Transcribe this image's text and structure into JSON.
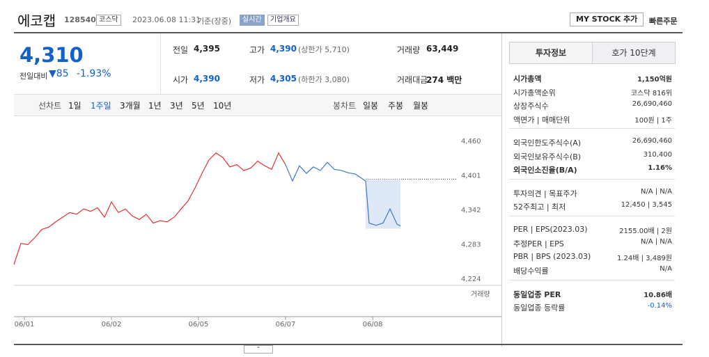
{
  "header": {
    "name": "에코캡",
    "code": "128540",
    "market": "코스닥",
    "date": "2023.06.08 11:31",
    "basis": "기준(장중)",
    "realtime": "실시간",
    "overview": "기업개요",
    "mystock": "MY STOCK 추가",
    "quick": "빠른주문"
  },
  "price": {
    "current": "4,310",
    "change_label": "전일대비",
    "change": "85",
    "rate": "-1.93%"
  },
  "quotes": [
    [
      "전일",
      "4,395",
      ""
    ],
    [
      "고가",
      "4,390",
      "(상한가 5,710)"
    ],
    [
      "거래량",
      "63,449",
      ""
    ],
    [
      "시가",
      "4,390",
      ""
    ],
    [
      "저가",
      "4,305",
      "(하한가 3,080)"
    ],
    [
      "거래대금",
      "274 백만",
      ""
    ]
  ],
  "tabs": {
    "line_chart": "선차트",
    "periods": [
      "1일",
      "1주일",
      "3개월",
      "1년",
      "3년",
      "5년",
      "10년"
    ],
    "candle": "봉차트",
    "candle_periods": [
      "일봉",
      "주봉",
      "월봉"
    ]
  },
  "chart_data": {
    "type": "line",
    "reference": 4395,
    "volume_label": "거래량",
    "xlim": [
      0,
      140
    ],
    "xticks": [
      {
        "value": 3,
        "label": "06/01"
      },
      {
        "value": 28,
        "label": "06/02"
      },
      {
        "value": 53,
        "label": "06/05"
      },
      {
        "value": 78,
        "label": "06/07"
      },
      {
        "value": 103,
        "label": "06/08"
      }
    ],
    "ylim": [
      4224,
      4460
    ],
    "yticks": [
      {
        "value": 4460,
        "label": "4,460"
      },
      {
        "value": 4401,
        "label": "4,401"
      },
      {
        "value": 4342,
        "label": "4,342"
      },
      {
        "value": 4283,
        "label": "4,283"
      },
      {
        "value": 4224,
        "label": "4,224"
      }
    ],
    "series": [
      {
        "color": "#e0312f",
        "x": [
          0,
          2,
          4,
          6,
          8,
          10,
          12,
          14,
          16,
          18,
          20,
          22,
          24,
          26,
          28,
          30,
          32,
          34,
          36,
          38,
          40,
          42,
          44,
          46,
          48,
          50,
          52,
          54,
          56,
          58,
          60,
          62,
          64,
          66,
          68,
          70,
          72,
          74,
          76,
          78
        ],
        "values": [
          4249,
          4285,
          4283,
          4295,
          4309,
          4313,
          4322,
          4330,
          4338,
          4335,
          4344,
          4340,
          4346,
          4330,
          4356,
          4338,
          4344,
          4332,
          4326,
          4335,
          4320,
          4324,
          4322,
          4330,
          4344,
          4358,
          4380,
          4405,
          4428,
          4440,
          4432,
          4416,
          4420,
          4410,
          4414,
          4426,
          4418,
          4412,
          4440,
          4420
        ]
      },
      {
        "color": "#3a78c9",
        "x": [
          78,
          80,
          82,
          84,
          86,
          88,
          90,
          92,
          94,
          96,
          98,
          100,
          101,
          102,
          104,
          106,
          108,
          110,
          111
        ],
        "values": [
          4420,
          4392,
          4418,
          4405,
          4416,
          4410,
          4424,
          4412,
          4410,
          4406,
          4404,
          4396,
          4392,
          4320,
          4316,
          4320,
          4344,
          4318,
          4315
        ]
      }
    ]
  },
  "info": {
    "tabs": [
      "투자정보",
      "호가 10단계"
    ],
    "sections": [
      [
        [
          "시가총액",
          "1,150억원"
        ],
        [
          "시가총액순위",
          "코스닥 816위"
        ],
        [
          "상장주식수",
          "26,690,460"
        ],
        [
          "액면가 | 매매단위",
          "100원 | 1주"
        ]
      ],
      [
        [
          "외국인한도주식수(A)",
          "26,690,460"
        ],
        [
          "외국인보유주식수(B)",
          "310,400"
        ],
        [
          "외국인소진율(B/A)",
          "1.16%"
        ]
      ],
      [
        [
          "투자의견 | 목표주가",
          "N/A | N/A"
        ],
        [
          "52주최고 | 최저",
          "12,450 | 3,545"
        ]
      ],
      [
        [
          "PER | EPS(2023.03)",
          "2155.00배 | 2원"
        ],
        [
          "추정PER | EPS",
          "N/A | N/A"
        ],
        [
          "PBR | BPS (2023.03)",
          "1.24배 | 3,489원"
        ],
        [
          "배당수익률",
          "N/A"
        ]
      ],
      [
        [
          "동일업종 PER",
          "10.86배"
        ],
        [
          "동일업종 등락률",
          "-0.14%"
        ]
      ]
    ]
  }
}
